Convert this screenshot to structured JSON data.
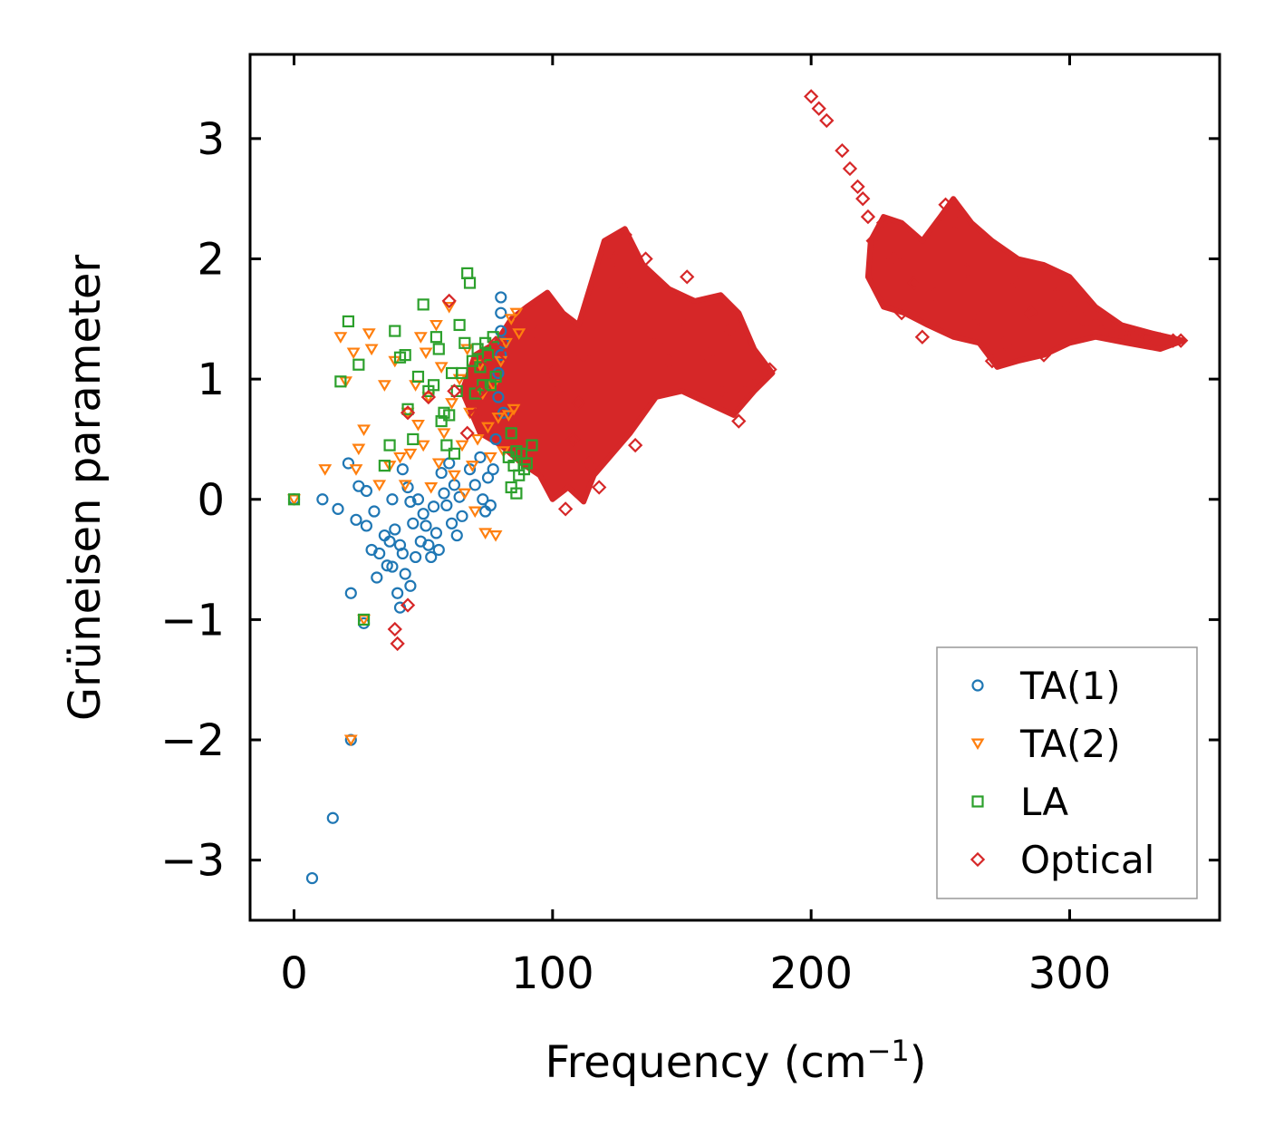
{
  "chart_data": {
    "type": "scatter",
    "title": "",
    "xlabel": "Frequency (cm",
    "xlabel_superscript": "−1",
    "xlabel_suffix": ")",
    "ylabel": "Grüneisen parameter",
    "xlim": [
      -17,
      358
    ],
    "ylim": [
      -3.5,
      3.7
    ],
    "x_ticks": [
      0,
      100,
      200,
      300
    ],
    "x_tick_labels": [
      "0",
      "100",
      "200",
      "300"
    ],
    "y_ticks": [
      -3,
      -2,
      -1,
      0,
      1,
      2,
      3
    ],
    "y_tick_labels": [
      "−3",
      "−2",
      "−1",
      "0",
      "1",
      "2",
      "3"
    ],
    "grid": false,
    "legend_position": "lower-right",
    "series": [
      {
        "name": "TA(1)",
        "marker": "circle",
        "color": "#1f77b4",
        "points": [
          [
            0,
            0
          ],
          [
            7,
            -3.15
          ],
          [
            15,
            -2.65
          ],
          [
            22,
            -2.0
          ],
          [
            22,
            -0.78
          ],
          [
            27,
            -1.03
          ],
          [
            11,
            0.0
          ],
          [
            17,
            -0.08
          ],
          [
            21,
            0.3
          ],
          [
            24,
            -0.17
          ],
          [
            25,
            0.11
          ],
          [
            28,
            0.07
          ],
          [
            28,
            -0.22
          ],
          [
            30,
            -0.42
          ],
          [
            31,
            -0.1
          ],
          [
            32,
            -0.65
          ],
          [
            33,
            -0.45
          ],
          [
            35,
            -0.3
          ],
          [
            36,
            -0.55
          ],
          [
            37,
            -0.35
          ],
          [
            38,
            -0.56
          ],
          [
            39,
            -0.25
          ],
          [
            40,
            -0.78
          ],
          [
            41,
            -0.38
          ],
          [
            41,
            -0.9
          ],
          [
            42,
            -0.45
          ],
          [
            43,
            -0.62
          ],
          [
            44,
            0.1
          ],
          [
            45,
            -0.72
          ],
          [
            46,
            -0.2
          ],
          [
            47,
            -0.48
          ],
          [
            48,
            0.0
          ],
          [
            49,
            -0.35
          ],
          [
            50,
            -0.12
          ],
          [
            51,
            -0.22
          ],
          [
            52,
            -0.38
          ],
          [
            53,
            -0.48
          ],
          [
            54,
            -0.06
          ],
          [
            55,
            -0.28
          ],
          [
            56,
            -0.42
          ],
          [
            57,
            0.22
          ],
          [
            58,
            0.05
          ],
          [
            59,
            -0.05
          ],
          [
            60,
            0.3
          ],
          [
            61,
            -0.2
          ],
          [
            62,
            0.12
          ],
          [
            63,
            -0.3
          ],
          [
            64,
            0.02
          ],
          [
            65,
            -0.14
          ],
          [
            72,
            0.35
          ],
          [
            73,
            0.0
          ],
          [
            74,
            -0.1
          ],
          [
            75,
            0.18
          ],
          [
            76,
            -0.05
          ],
          [
            77,
            0.25
          ],
          [
            78,
            0.5
          ],
          [
            79,
            0.85
          ],
          [
            79,
            1.05
          ],
          [
            80,
            1.2
          ],
          [
            80,
            1.4
          ],
          [
            80,
            1.55
          ],
          [
            80,
            1.68
          ],
          [
            81,
            1.3
          ],
          [
            81,
            0.72
          ],
          [
            42,
            0.25
          ],
          [
            38,
            0.0
          ],
          [
            45,
            -0.02
          ],
          [
            68,
            0.25
          ],
          [
            70,
            0.12
          ]
        ]
      },
      {
        "name": "TA(2)",
        "marker": "triangle-down",
        "color": "#ff7f0e",
        "points": [
          [
            0,
            0
          ],
          [
            22,
            -2.0
          ],
          [
            27,
            -1.0
          ],
          [
            12,
            0.25
          ],
          [
            18,
            1.35
          ],
          [
            20,
            0.98
          ],
          [
            23,
            1.22
          ],
          [
            24,
            0.25
          ],
          [
            25,
            0.42
          ],
          [
            27,
            0.58
          ],
          [
            29,
            1.38
          ],
          [
            30,
            1.25
          ],
          [
            33,
            0.12
          ],
          [
            35,
            0.95
          ],
          [
            37,
            0.28
          ],
          [
            39,
            1.15
          ],
          [
            41,
            0.35
          ],
          [
            43,
            0.12
          ],
          [
            44,
            0.72
          ],
          [
            45,
            0.38
          ],
          [
            47,
            0.95
          ],
          [
            48,
            0.62
          ],
          [
            49,
            1.35
          ],
          [
            50,
            0.45
          ],
          [
            51,
            1.22
          ],
          [
            52,
            0.85
          ],
          [
            53,
            0.1
          ],
          [
            55,
            1.45
          ],
          [
            56,
            0.3
          ],
          [
            57,
            1.1
          ],
          [
            58,
            0.55
          ],
          [
            60,
            1.6
          ],
          [
            61,
            0.8
          ],
          [
            62,
            0.2
          ],
          [
            64,
            1.0
          ],
          [
            65,
            0.45
          ],
          [
            66,
            0.05
          ],
          [
            67,
            1.25
          ],
          [
            68,
            0.72
          ],
          [
            69,
            0.28
          ],
          [
            70,
            -0.1
          ],
          [
            71,
            0.5
          ],
          [
            72,
            1.12
          ],
          [
            73,
            0.88
          ],
          [
            74,
            -0.28
          ],
          [
            75,
            0.6
          ],
          [
            76,
            0.35
          ],
          [
            77,
            0.95
          ],
          [
            78,
            -0.3
          ],
          [
            79,
            0.68
          ],
          [
            80,
            1.15
          ],
          [
            81,
            0.4
          ],
          [
            82,
            1.3
          ],
          [
            83,
            0.7
          ],
          [
            84,
            1.5
          ],
          [
            85,
            0.75
          ],
          [
            86,
            1.55
          ],
          [
            87,
            1.38
          ]
        ]
      },
      {
        "name": "LA",
        "marker": "square",
        "color": "#2ca02c",
        "points": [
          [
            0,
            0
          ],
          [
            27,
            -1.0
          ],
          [
            18,
            0.98
          ],
          [
            21,
            1.48
          ],
          [
            25,
            1.12
          ],
          [
            35,
            0.28
          ],
          [
            37,
            0.45
          ],
          [
            39,
            1.4
          ],
          [
            41,
            1.18
          ],
          [
            43,
            1.2
          ],
          [
            44,
            0.75
          ],
          [
            46,
            0.5
          ],
          [
            48,
            1.02
          ],
          [
            50,
            1.62
          ],
          [
            52,
            0.9
          ],
          [
            54,
            0.95
          ],
          [
            55,
            1.35
          ],
          [
            56,
            1.25
          ],
          [
            57,
            0.65
          ],
          [
            58,
            0.72
          ],
          [
            59,
            0.45
          ],
          [
            60,
            0.7
          ],
          [
            61,
            1.05
          ],
          [
            62,
            0.38
          ],
          [
            63,
            0.9
          ],
          [
            64,
            1.45
          ],
          [
            65,
            1.05
          ],
          [
            66,
            1.3
          ],
          [
            67,
            1.88
          ],
          [
            68,
            1.8
          ],
          [
            69,
            1.15
          ],
          [
            70,
            0.88
          ],
          [
            71,
            1.25
          ],
          [
            72,
            1.1
          ],
          [
            73,
            0.95
          ],
          [
            74,
            1.3
          ],
          [
            75,
            1.2
          ],
          [
            76,
            0.95
          ],
          [
            77,
            1.35
          ],
          [
            78,
            1.02
          ],
          [
            83,
            0.35
          ],
          [
            84,
            0.1
          ],
          [
            85,
            0.28
          ],
          [
            86,
            0.05
          ],
          [
            87,
            0.2
          ],
          [
            88,
            0.38
          ],
          [
            89,
            0.25
          ],
          [
            90,
            0.3
          ],
          [
            92,
            0.45
          ],
          [
            84,
            0.55
          ],
          [
            86,
            0.4
          ]
        ]
      },
      {
        "name": "Optical",
        "marker": "diamond",
        "color": "#d62728",
        "points": [
          [
            40,
            -1.2
          ],
          [
            39,
            -1.08
          ],
          [
            44,
            -0.88
          ],
          [
            44,
            0.72
          ],
          [
            52,
            0.85
          ],
          [
            60,
            1.65
          ],
          [
            62,
            0.9
          ],
          [
            67,
            0.55
          ],
          [
            70,
            0.7
          ],
          [
            72,
            0.9
          ],
          [
            75,
            1.15
          ],
          [
            78,
            1.3
          ],
          [
            82,
            1.2
          ],
          [
            88,
            1.5
          ],
          [
            94,
            1.38
          ],
          [
            100,
            1.05
          ],
          [
            102,
            0.9
          ],
          [
            104,
            0.35
          ],
          [
            105,
            -0.08
          ],
          [
            108,
            0.5
          ],
          [
            110,
            0.8
          ],
          [
            112,
            1.2
          ],
          [
            114,
            0.3
          ],
          [
            118,
            0.1
          ],
          [
            120,
            1.5
          ],
          [
            124,
            2.0
          ],
          [
            126,
            1.7
          ],
          [
            128,
            2.2
          ],
          [
            130,
            1.8
          ],
          [
            132,
            0.45
          ],
          [
            136,
            2.0
          ],
          [
            140,
            1.3
          ],
          [
            145,
            1.15
          ],
          [
            150,
            1.5
          ],
          [
            152,
            1.85
          ],
          [
            160,
            1.2
          ],
          [
            165,
            0.9
          ],
          [
            168,
            1.4
          ],
          [
            172,
            0.65
          ],
          [
            175,
            0.9
          ],
          [
            180,
            1.0
          ],
          [
            184,
            1.08
          ],
          [
            200,
            3.35
          ],
          [
            203,
            3.25
          ],
          [
            206,
            3.15
          ],
          [
            212,
            2.9
          ],
          [
            215,
            2.75
          ],
          [
            218,
            2.6
          ],
          [
            220,
            2.5
          ],
          [
            222,
            2.35
          ],
          [
            224,
            2.15
          ],
          [
            228,
            2.3
          ],
          [
            232,
            2.0
          ],
          [
            235,
            1.55
          ],
          [
            240,
            1.8
          ],
          [
            243,
            1.35
          ],
          [
            248,
            1.7
          ],
          [
            252,
            2.45
          ],
          [
            256,
            2.3
          ],
          [
            260,
            1.9
          ],
          [
            265,
            1.5
          ],
          [
            270,
            1.15
          ],
          [
            275,
            1.3
          ],
          [
            280,
            1.8
          ],
          [
            285,
            1.55
          ],
          [
            290,
            1.2
          ],
          [
            295,
            1.7
          ],
          [
            300,
            1.6
          ],
          [
            305,
            1.5
          ],
          [
            310,
            1.45
          ],
          [
            315,
            1.42
          ],
          [
            320,
            1.4
          ],
          [
            325,
            1.37
          ],
          [
            330,
            1.35
          ],
          [
            335,
            1.33
          ],
          [
            340,
            1.32
          ],
          [
            343,
            1.32
          ]
        ]
      }
    ],
    "dense_regions": [
      {
        "series": "Optical",
        "color": "#d62728",
        "outline": [
          [
            65,
            0.9
          ],
          [
            72,
            0.55
          ],
          [
            80,
            0.45
          ],
          [
            88,
            0.3
          ],
          [
            95,
            0.2
          ],
          [
            100,
            0.0
          ],
          [
            106,
            0.1
          ],
          [
            112,
            -0.02
          ],
          [
            116,
            0.2
          ],
          [
            122,
            0.35
          ],
          [
            130,
            0.55
          ],
          [
            140,
            0.85
          ],
          [
            150,
            0.9
          ],
          [
            160,
            0.8
          ],
          [
            170,
            0.7
          ],
          [
            178,
            0.9
          ],
          [
            185,
            1.05
          ],
          [
            178,
            1.25
          ],
          [
            172,
            1.55
          ],
          [
            165,
            1.7
          ],
          [
            155,
            1.65
          ],
          [
            145,
            1.75
          ],
          [
            135,
            1.95
          ],
          [
            128,
            2.25
          ],
          [
            120,
            2.15
          ],
          [
            115,
            1.8
          ],
          [
            110,
            1.45
          ],
          [
            104,
            1.55
          ],
          [
            98,
            1.72
          ],
          [
            90,
            1.6
          ],
          [
            84,
            1.5
          ],
          [
            78,
            1.3
          ],
          [
            70,
            1.2
          ]
        ]
      },
      {
        "series": "Optical",
        "color": "#d62728",
        "outline": [
          [
            223,
            2.15
          ],
          [
            228,
            2.35
          ],
          [
            235,
            2.3
          ],
          [
            243,
            2.15
          ],
          [
            250,
            2.35
          ],
          [
            255,
            2.5
          ],
          [
            262,
            2.3
          ],
          [
            270,
            2.15
          ],
          [
            280,
            2.0
          ],
          [
            290,
            1.95
          ],
          [
            300,
            1.85
          ],
          [
            310,
            1.6
          ],
          [
            320,
            1.45
          ],
          [
            332,
            1.38
          ],
          [
            344,
            1.32
          ],
          [
            335,
            1.25
          ],
          [
            322,
            1.3
          ],
          [
            310,
            1.35
          ],
          [
            300,
            1.3
          ],
          [
            290,
            1.2
          ],
          [
            280,
            1.15
          ],
          [
            272,
            1.1
          ],
          [
            265,
            1.3
          ],
          [
            255,
            1.35
          ],
          [
            245,
            1.45
          ],
          [
            236,
            1.55
          ],
          [
            228,
            1.6
          ],
          [
            222,
            1.85
          ]
        ]
      }
    ]
  }
}
